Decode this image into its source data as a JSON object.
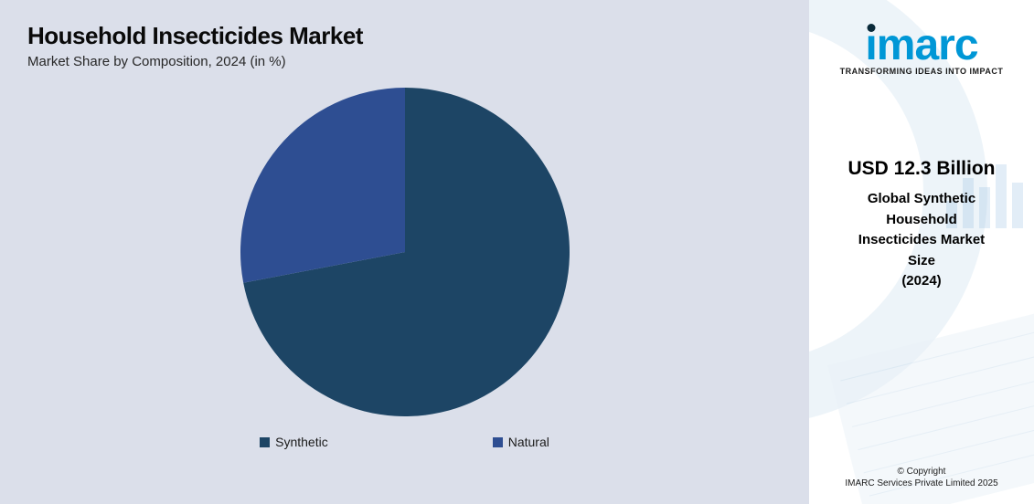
{
  "chart_panel": {
    "background_color": "#dbdfea",
    "title": "Household Insecticides Market",
    "title_color": "#0a0a0a",
    "title_fontsize": 26,
    "subtitle": "Market Share by Composition, 2024 (in %)",
    "subtitle_color": "#272727",
    "subtitle_fontsize": 15,
    "pie": {
      "type": "pie",
      "radius": 180,
      "start_angle_deg": 0,
      "slices": [
        {
          "label": "Synthetic",
          "value": 72,
          "color": "#1d4565"
        },
        {
          "label": "Natural",
          "value": 28,
          "color": "#2e4e92"
        }
      ]
    },
    "legend": {
      "fontsize": 14,
      "text_color": "#1b1b1b",
      "items": [
        {
          "label": "Synthetic",
          "swatch": "#1d4565"
        },
        {
          "label": "Natural",
          "swatch": "#2e4e92"
        }
      ]
    }
  },
  "side_panel": {
    "background_color": "#ffffff",
    "decor": {
      "arc_color": "#dceaf4",
      "chart_sheet_color": "#eaf2f8",
      "bar_color": "#8fb9e0"
    },
    "logo": {
      "word": "imarc",
      "word_color": "#0097d6",
      "dot_color": "#0a2a3a",
      "tagline": "TRANSFORMING IDEAS INTO IMPACT",
      "tagline_color": "#1a1a1a"
    },
    "stat": {
      "value": "USD 12.3 Billion",
      "value_color": "#000000",
      "label_lines": [
        "Global Synthetic",
        "Household",
        "Insecticides Market",
        "Size",
        "(2024)"
      ],
      "label_color": "#000000"
    },
    "copyright": {
      "line1": "© Copyright",
      "line2": "IMARC Services Private Limited 2025",
      "color": "#1a1a1a"
    }
  }
}
